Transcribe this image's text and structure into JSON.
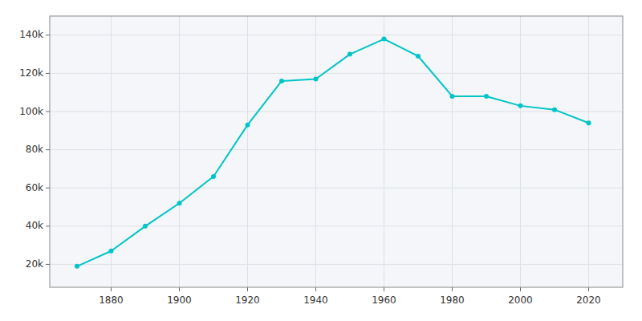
{
  "chart_data": {
    "type": "line",
    "x": [
      1870,
      1880,
      1890,
      1900,
      1910,
      1920,
      1930,
      1940,
      1950,
      1960,
      1970,
      1980,
      1990,
      2000,
      2010,
      2020
    ],
    "values": [
      19000,
      27000,
      40000,
      52000,
      66000,
      93000,
      116000,
      117000,
      130000,
      138000,
      129000,
      108000,
      108000,
      103000,
      101000,
      94000
    ],
    "color": "#00C5C8",
    "marker": "circle",
    "xlim": [
      1862,
      2030
    ],
    "ylim": [
      8000,
      150000
    ],
    "xticks": [
      1880,
      1900,
      1920,
      1940,
      1960,
      1980,
      2000,
      2020
    ],
    "yticks": [
      {
        "value": 20000,
        "label": "20k"
      },
      {
        "value": 40000,
        "label": "40k"
      },
      {
        "value": 60000,
        "label": "60k"
      },
      {
        "value": 80000,
        "label": "80k"
      },
      {
        "value": 100000,
        "label": "100k"
      },
      {
        "value": 120000,
        "label": "120k"
      },
      {
        "value": 140000,
        "label": "140k"
      }
    ],
    "grid": true
  }
}
